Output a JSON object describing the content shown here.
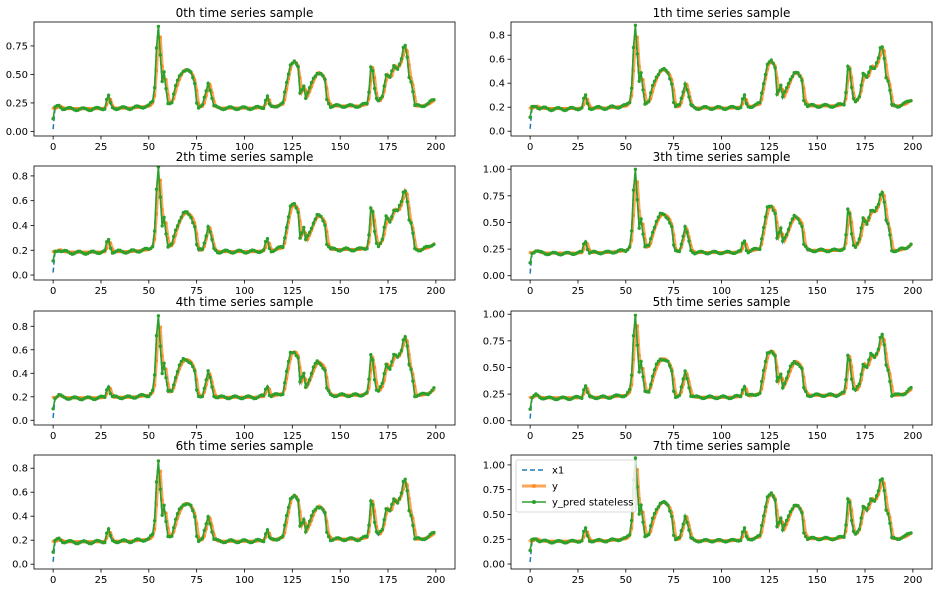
{
  "colors": {
    "x1": "#1f77b4",
    "y": "#ff7f0e",
    "y_pred": "#2ca02c"
  },
  "chart_data": [
    {
      "type": "line",
      "title": "0th time series sample",
      "xlim": [
        -10,
        210
      ],
      "ylim": [
        -0.04,
        0.96
      ],
      "xticks": [
        0,
        25,
        50,
        75,
        100,
        125,
        150,
        175,
        200
      ],
      "xtick_labels": [
        "0",
        "25",
        "50",
        "75",
        "100",
        "125",
        "150",
        "175",
        "200"
      ],
      "yticks": [
        0,
        0.25,
        0.5,
        0.75
      ],
      "ytick_labels": [
        "0.00",
        "0.25",
        "0.50",
        "0.75"
      ],
      "peak": 0.93,
      "grid": false
    },
    {
      "type": "line",
      "title": "1th time series sample",
      "xlim": [
        -10,
        210
      ],
      "ylim": [
        -0.04,
        0.91
      ],
      "xticks": [
        0,
        25,
        50,
        75,
        100,
        125,
        150,
        175,
        200
      ],
      "xtick_labels": [
        "0",
        "25",
        "50",
        "75",
        "100",
        "125",
        "150",
        "175",
        "200"
      ],
      "yticks": [
        0,
        0.2,
        0.4,
        0.6,
        0.8
      ],
      "ytick_labels": [
        "0.0",
        "0.2",
        "0.4",
        "0.6",
        "0.8"
      ],
      "peak": 0.88,
      "grid": false
    },
    {
      "type": "line",
      "title": "2th time series sample",
      "xlim": [
        -10,
        210
      ],
      "ylim": [
        -0.04,
        0.88
      ],
      "xticks": [
        0,
        25,
        50,
        75,
        100,
        125,
        150,
        175,
        200
      ],
      "xtick_labels": [
        "0",
        "25",
        "50",
        "75",
        "100",
        "125",
        "150",
        "175",
        "200"
      ],
      "yticks": [
        0,
        0.2,
        0.4,
        0.6,
        0.8
      ],
      "ytick_labels": [
        "0.0",
        "0.2",
        "0.4",
        "0.6",
        "0.8"
      ],
      "peak": 0.86,
      "grid": false
    },
    {
      "type": "line",
      "title": "3th time series sample",
      "xlim": [
        -10,
        210
      ],
      "ylim": [
        -0.04,
        1.03
      ],
      "xticks": [
        0,
        25,
        50,
        75,
        100,
        125,
        150,
        175,
        200
      ],
      "xtick_labels": [
        "0",
        "25",
        "50",
        "75",
        "100",
        "125",
        "150",
        "175",
        "200"
      ],
      "yticks": [
        0,
        0.25,
        0.5,
        0.75,
        1.0
      ],
      "ytick_labels": [
        "0.00",
        "0.25",
        "0.50",
        "0.75",
        "1.00"
      ],
      "peak": 0.99,
      "grid": false
    },
    {
      "type": "line",
      "title": "4th time series sample",
      "xlim": [
        -10,
        210
      ],
      "ylim": [
        -0.04,
        0.93
      ],
      "xticks": [
        0,
        25,
        50,
        75,
        100,
        125,
        150,
        175,
        200
      ],
      "xtick_labels": [
        "0",
        "25",
        "50",
        "75",
        "100",
        "125",
        "150",
        "175",
        "200"
      ],
      "yticks": [
        0,
        0.2,
        0.4,
        0.6,
        0.8
      ],
      "ytick_labels": [
        "0.0",
        "0.2",
        "0.4",
        "0.6",
        "0.8"
      ],
      "peak": 0.89,
      "grid": false
    },
    {
      "type": "line",
      "title": "5th time series sample",
      "xlim": [
        -10,
        210
      ],
      "ylim": [
        -0.04,
        1.03
      ],
      "xticks": [
        0,
        25,
        50,
        75,
        100,
        125,
        150,
        175,
        200
      ],
      "xtick_labels": [
        "0",
        "25",
        "50",
        "75",
        "100",
        "125",
        "150",
        "175",
        "200"
      ],
      "yticks": [
        0,
        0.25,
        0.5,
        0.75,
        1.0
      ],
      "ytick_labels": [
        "0.00",
        "0.25",
        "0.50",
        "0.75",
        "1.00"
      ],
      "peak": 1.0,
      "grid": false
    },
    {
      "type": "line",
      "title": "6th time series sample",
      "xlim": [
        -10,
        210
      ],
      "ylim": [
        -0.04,
        0.91
      ],
      "xticks": [
        0,
        25,
        50,
        75,
        100,
        125,
        150,
        175,
        200
      ],
      "xtick_labels": [
        "0",
        "25",
        "50",
        "75",
        "100",
        "125",
        "150",
        "175",
        "200"
      ],
      "yticks": [
        0,
        0.2,
        0.4,
        0.6,
        0.8
      ],
      "ytick_labels": [
        "0.0",
        "0.2",
        "0.4",
        "0.6",
        "0.8"
      ],
      "peak": 0.87,
      "grid": false
    },
    {
      "type": "line",
      "title": "7th time series sample",
      "xlim": [
        -10,
        210
      ],
      "ylim": [
        -0.05,
        1.1
      ],
      "xticks": [
        0,
        25,
        50,
        75,
        100,
        125,
        150,
        175,
        200
      ],
      "xtick_labels": [
        "0",
        "25",
        "50",
        "75",
        "100",
        "125",
        "150",
        "175",
        "200"
      ],
      "yticks": [
        0,
        0.25,
        0.5,
        0.75,
        1.0
      ],
      "ytick_labels": [
        "0.00",
        "0.25",
        "0.50",
        "0.75",
        "1.00"
      ],
      "peak": 1.07,
      "grid": false,
      "legend": {
        "location": "upper-left",
        "entries": [
          "x1",
          "y",
          "y_pred stateless"
        ]
      }
    }
  ]
}
